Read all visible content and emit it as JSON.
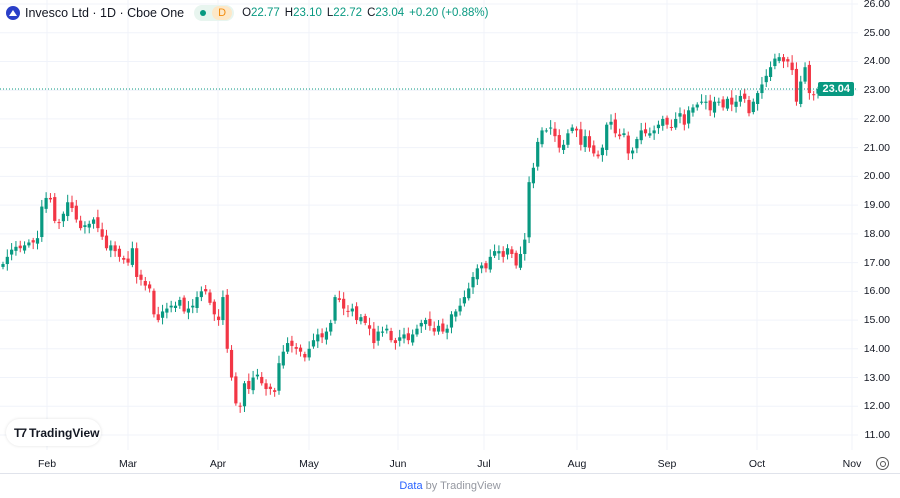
{
  "header": {
    "title": "Invesco Ltd · 1D · Cboe One",
    "badge": "D",
    "o_label": "O",
    "o": "22.77",
    "h_label": "H",
    "h": "23.10",
    "l_label": "L",
    "l": "22.72",
    "c_label": "C",
    "c": "23.04",
    "change": "+0.20 (+0.88%)"
  },
  "colors": {
    "up": "#089981",
    "down": "#f23645",
    "grid": "#f0f3fa"
  },
  "price_badge": "23.04",
  "logo_text": "TradingView",
  "footer": {
    "link": "Data",
    "rest": " by TradingView"
  },
  "chart_data": {
    "type": "candlestick",
    "title": "Invesco Ltd · 1D · Cboe One",
    "ylim": [
      11,
      26
    ],
    "y_ticks": [
      "26.00",
      "25.00",
      "24.00",
      "23.00",
      "22.00",
      "21.00",
      "20.00",
      "19.00",
      "18.00",
      "17.00",
      "16.00",
      "15.00",
      "14.00",
      "13.00",
      "12.00",
      "11.00"
    ],
    "x_ticks": [
      "Feb",
      "Mar",
      "Apr",
      "May",
      "Jun",
      "Jul",
      "Aug",
      "Sep",
      "Oct",
      "Nov"
    ],
    "last_price": 23.04,
    "grid": true,
    "closes": [
      16.95,
      17.2,
      17.45,
      17.55,
      17.5,
      17.6,
      17.7,
      17.7,
      17.85,
      18.95,
      19.25,
      19.2,
      18.45,
      18.4,
      18.7,
      19.1,
      18.9,
      18.5,
      18.2,
      18.3,
      18.35,
      18.5,
      18.2,
      17.9,
      17.5,
      17.6,
      17.4,
      17.2,
      17.1,
      17.0,
      17.5,
      16.5,
      16.4,
      16.2,
      16.1,
      15.2,
      15.0,
      15.3,
      15.4,
      15.5,
      15.5,
      15.7,
      15.3,
      15.4,
      15.5,
      15.8,
      16.0,
      16.0,
      15.6,
      15.2,
      15.0,
      15.8,
      14.0,
      13.0,
      12.1,
      12.0,
      12.8,
      12.6,
      13.0,
      13.1,
      12.8,
      12.6,
      12.6,
      12.5,
      13.5,
      13.9,
      14.2,
      14.1,
      14.0,
      13.9,
      13.7,
      14.0,
      14.3,
      14.5,
      14.4,
      14.6,
      14.9,
      15.8,
      15.7,
      15.4,
      15.3,
      15.4,
      15.0,
      15.1,
      14.9,
      14.7,
      14.2,
      14.6,
      14.6,
      14.7,
      14.3,
      14.2,
      14.4,
      14.5,
      14.3,
      14.5,
      14.7,
      14.9,
      15.0,
      14.8,
      14.6,
      14.8,
      14.6,
      14.7,
      15.2,
      15.3,
      15.5,
      15.8,
      16.1,
      16.5,
      16.8,
      16.9,
      16.8,
      17.2,
      17.4,
      17.4,
      17.2,
      17.5,
      17.3,
      16.9,
      17.3,
      17.8,
      19.8,
      20.3,
      21.2,
      21.6,
      21.6,
      21.7,
      21.4,
      21.0,
      21.1,
      21.5,
      21.7,
      21.6,
      21.1,
      21.4,
      21.0,
      20.8,
      20.7,
      21.0,
      21.8,
      21.9,
      21.5,
      21.4,
      21.5,
      20.8,
      20.9,
      21.3,
      21.6,
      21.5,
      21.5,
      21.6,
      21.8,
      22.0,
      21.8,
      21.7,
      22.0,
      22.2,
      21.8,
      22.3,
      22.4,
      22.5,
      22.6,
      22.6,
      22.3,
      22.6,
      22.6,
      22.4,
      22.7,
      22.5,
      22.6,
      22.8,
      22.7,
      22.2,
      22.6,
      22.9,
      23.2,
      23.5,
      23.8,
      24.1,
      24.15,
      24.0,
      24.0,
      23.7,
      22.6,
      23.3,
      23.8,
      22.9,
      22.84,
      23.04
    ]
  }
}
